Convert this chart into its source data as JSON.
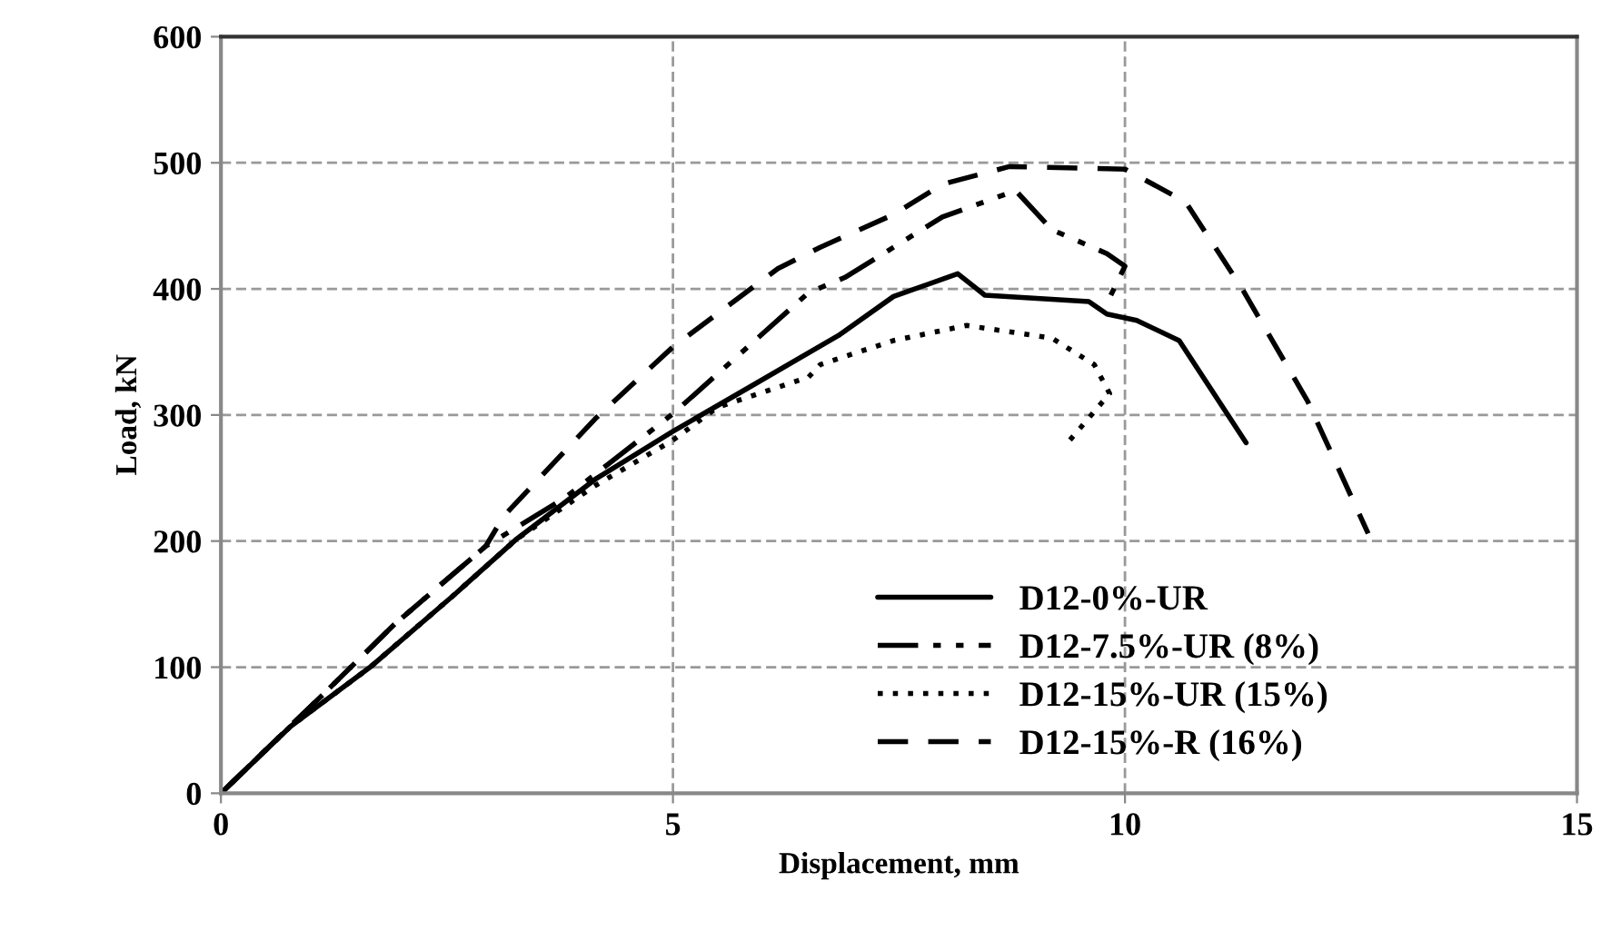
{
  "chart_data": {
    "type": "line",
    "xlabel": "Displacement, mm",
    "ylabel": "Load, kN",
    "xlim": [
      0,
      15
    ],
    "ylim": [
      0,
      600
    ],
    "xticks": [
      0,
      5,
      10,
      15
    ],
    "yticks": [
      0,
      100,
      200,
      300,
      400,
      500,
      600
    ],
    "grid": true,
    "legend": "bottom right",
    "marker": "none",
    "series": [
      {
        "name": "D12-0%-UR",
        "color": "#000000",
        "line_style": "solid",
        "x": [
          0,
          0.77,
          1.65,
          2.59,
          3.26,
          4.14,
          5.0,
          5.82,
          6.83,
          7.44,
          8.15,
          8.45,
          9.6,
          9.8,
          10.13,
          10.6,
          11.34
        ],
        "values": [
          0,
          53,
          100,
          158,
          201,
          249,
          287,
          321,
          363,
          394,
          412,
          395,
          390,
          380,
          375,
          359,
          278
        ]
      },
      {
        "name": "D12-7.5%-UR (8%)",
        "color": "#000000",
        "line_style": "dashdot",
        "x": [
          0,
          1.11,
          1.92,
          2.93,
          3.8,
          5.0,
          6.5,
          6.9,
          7.44,
          7.98,
          8.79,
          9.19,
          9.8,
          10.0,
          9.83
        ],
        "values": [
          0,
          77,
          134,
          196,
          234,
          301,
          397,
          409,
          433,
          457,
          478,
          447,
          428,
          418,
          393
        ]
      },
      {
        "name": "D12-15%-UR (15%)",
        "color": "#000000",
        "line_style": "dotted",
        "x": [
          0,
          0.77,
          1.65,
          2.59,
          3.26,
          4.14,
          5.0,
          5.49,
          6.5,
          6.63,
          7.44,
          8.25,
          9.19,
          9.66,
          9.83,
          9.39
        ],
        "values": [
          0,
          53,
          100,
          158,
          201,
          244,
          280,
          306,
          330,
          340,
          359,
          371,
          361,
          340,
          317,
          280
        ]
      },
      {
        "name": "D12-15%-R (16%)",
        "color": "#000000",
        "line_style": "dashed",
        "x": [
          0,
          1.11,
          1.92,
          2.93,
          3.13,
          4.14,
          5.0,
          6.16,
          6.63,
          7.44,
          7.98,
          8.72,
          10.0,
          10.67,
          11.28,
          12.02,
          12.69
        ],
        "values": [
          0,
          77,
          134,
          196,
          220,
          297,
          354,
          416,
          433,
          459,
          483,
          497,
          495,
          469,
          402,
          311,
          206
        ]
      }
    ]
  }
}
